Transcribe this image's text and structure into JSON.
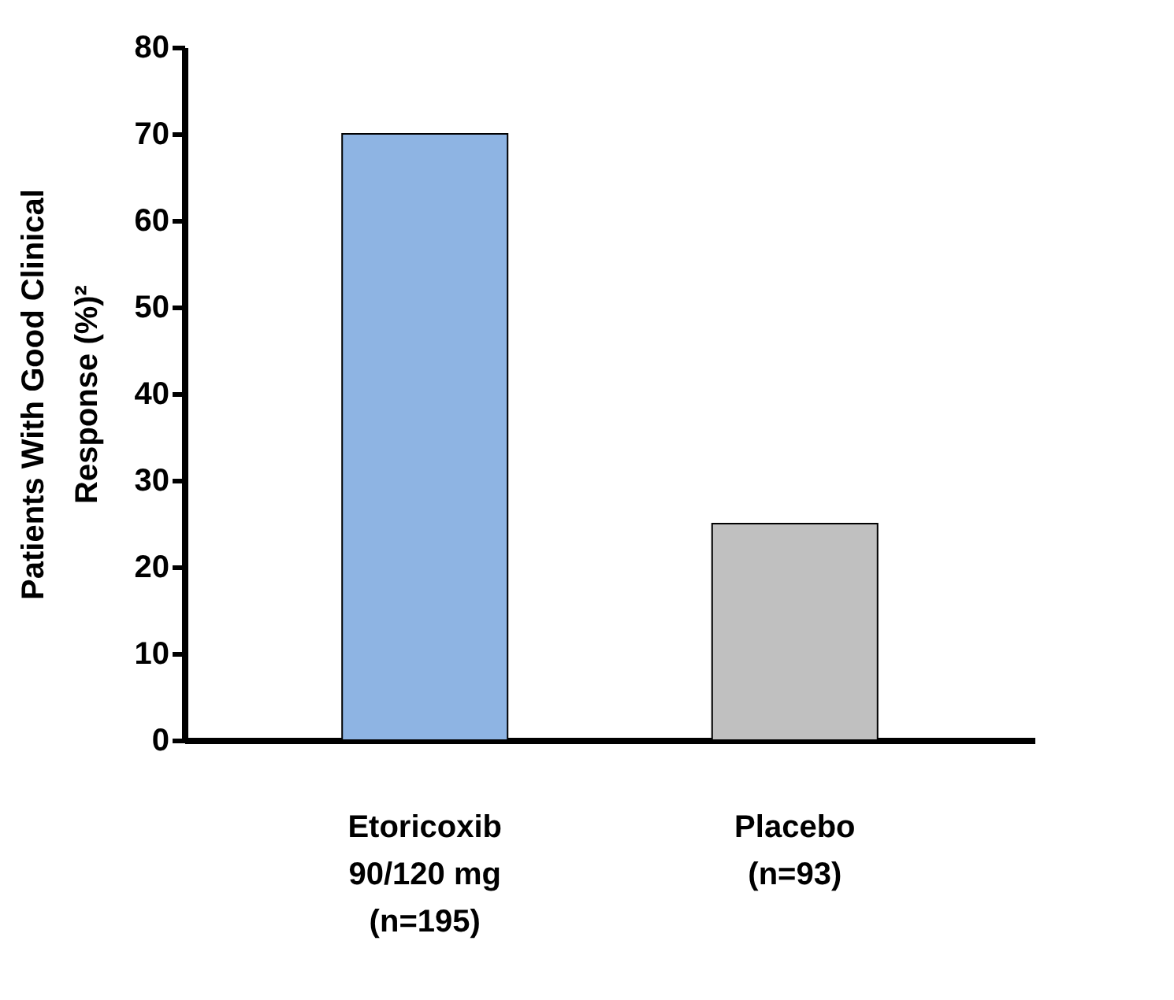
{
  "chart_data": {
    "type": "bar",
    "categories": [
      "Etoricoxib\n90/120 mg\n(n=195)",
      "Placebo\n(n=93)"
    ],
    "values": [
      70,
      25
    ],
    "colors": [
      "#8eb4e3",
      "#c0c0c0"
    ],
    "ylabel": "Patients With Good Clinical\nResponse (%)²",
    "ylim": [
      0,
      80
    ],
    "yticks": [
      0,
      10,
      20,
      30,
      40,
      50,
      60,
      70,
      80
    ],
    "grid": false
  }
}
